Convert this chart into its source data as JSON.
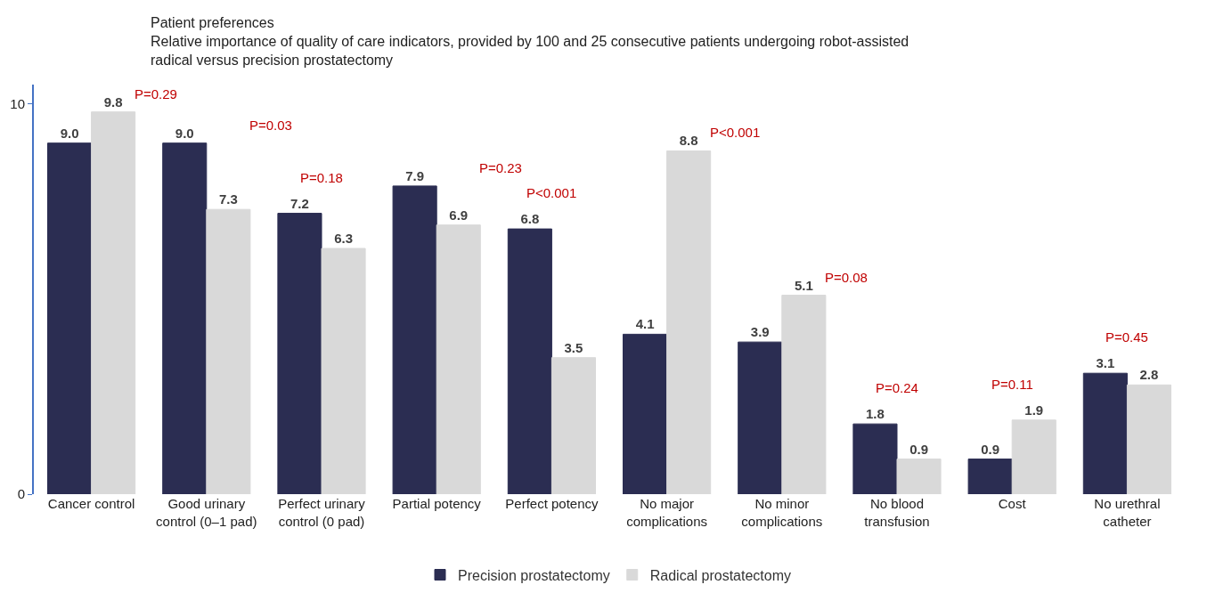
{
  "chart_data": {
    "type": "bar",
    "title": "Patient preferences",
    "subtitle": "Relative importance of quality of care indicators, provided by 100 and 25 consecutive patients undergoing robot-assisted radical versus precision prostatectomy",
    "categories": [
      "Cancer control",
      "Good urinary control (0–1 pad)",
      "Perfect urinary control (0 pad)",
      "Partial potency",
      "Perfect potency",
      "No major complications",
      "No minor complications",
      "No blood transfusion",
      "Cost",
      "No urethral catheter"
    ],
    "series": [
      {
        "name": "Precision prostatectomy",
        "color": "#2b2d52",
        "values": [
          9.0,
          9.0,
          7.2,
          7.9,
          6.8,
          4.1,
          3.9,
          1.8,
          0.9,
          3.1
        ],
        "value_labels": [
          "9.0",
          "9.0",
          "7.2",
          "7.9",
          "6.8",
          "4.1",
          "3.9",
          "1.8",
          "0.9",
          "3.1"
        ]
      },
      {
        "name": "Radical prostatectomy",
        "color": "#d9d9d9",
        "values": [
          9.8,
          7.3,
          6.3,
          6.9,
          3.5,
          8.8,
          5.1,
          0.9,
          1.9,
          2.8
        ],
        "value_labels": [
          "9.8",
          "7.3",
          "6.3",
          "6.9",
          "3.5",
          "8.8",
          "5.1",
          "0.9",
          "1.9",
          "2.8"
        ]
      }
    ],
    "ylim": [
      0,
      10.5
    ],
    "yticks": [
      0,
      10
    ],
    "grid": false,
    "legend": "bottom",
    "annotations": [
      "P=0.29",
      "P=0.03",
      "P=0.18",
      "P=0.23",
      "P<0.001",
      "P<0.001",
      "P=0.08",
      "P=0.24",
      "P=0.11",
      "P=0.45"
    ]
  }
}
